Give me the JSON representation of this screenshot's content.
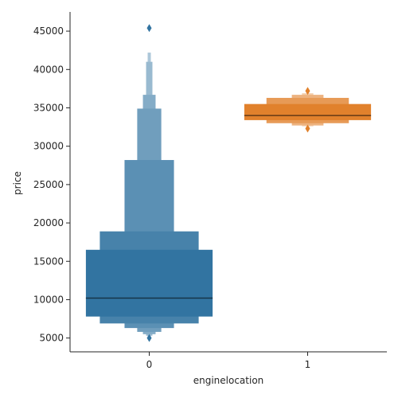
{
  "chart_data": {
    "type": "boxen",
    "title": "",
    "xlabel": "enginelocation",
    "ylabel": "price",
    "ylim": [
      3200,
      47500
    ],
    "y_ticks": [
      5000,
      10000,
      15000,
      20000,
      25000,
      30000,
      35000,
      40000,
      45000
    ],
    "y_tick_labels": [
      "5000",
      "10000",
      "15000",
      "20000",
      "25000",
      "30000",
      "35000",
      "40000",
      "45000"
    ],
    "categories": [
      "0",
      "1"
    ],
    "grid": false,
    "series": [
      {
        "category": "0",
        "color": "#3274a1",
        "median": 10200,
        "boxes": [
          {
            "low": 7800,
            "high": 16500,
            "width_fraction": 1.0
          },
          {
            "low": 6900,
            "high": 18900,
            "width_fraction": 0.78
          },
          {
            "low": 6300,
            "high": 28200,
            "width_fraction": 0.39
          },
          {
            "low": 5800,
            "high": 34900,
            "width_fraction": 0.19
          },
          {
            "low": 5500,
            "high": 36700,
            "width_fraction": 0.1
          },
          {
            "low": 5300,
            "high": 41000,
            "width_fraction": 0.05
          },
          {
            "low": 5200,
            "high": 42200,
            "width_fraction": 0.025
          }
        ],
        "outliers": [
          45400,
          5000
        ]
      },
      {
        "category": "1",
        "color": "#e1812c",
        "median": 34000,
        "boxes": [
          {
            "low": 33400,
            "high": 35500,
            "width_fraction": 1.0
          },
          {
            "low": 33000,
            "high": 36300,
            "width_fraction": 0.65
          },
          {
            "low": 32700,
            "high": 36700,
            "width_fraction": 0.25
          },
          {
            "low": 32600,
            "high": 36900,
            "width_fraction": 0.09
          }
        ],
        "outliers": [
          37200,
          32300
        ]
      }
    ]
  }
}
